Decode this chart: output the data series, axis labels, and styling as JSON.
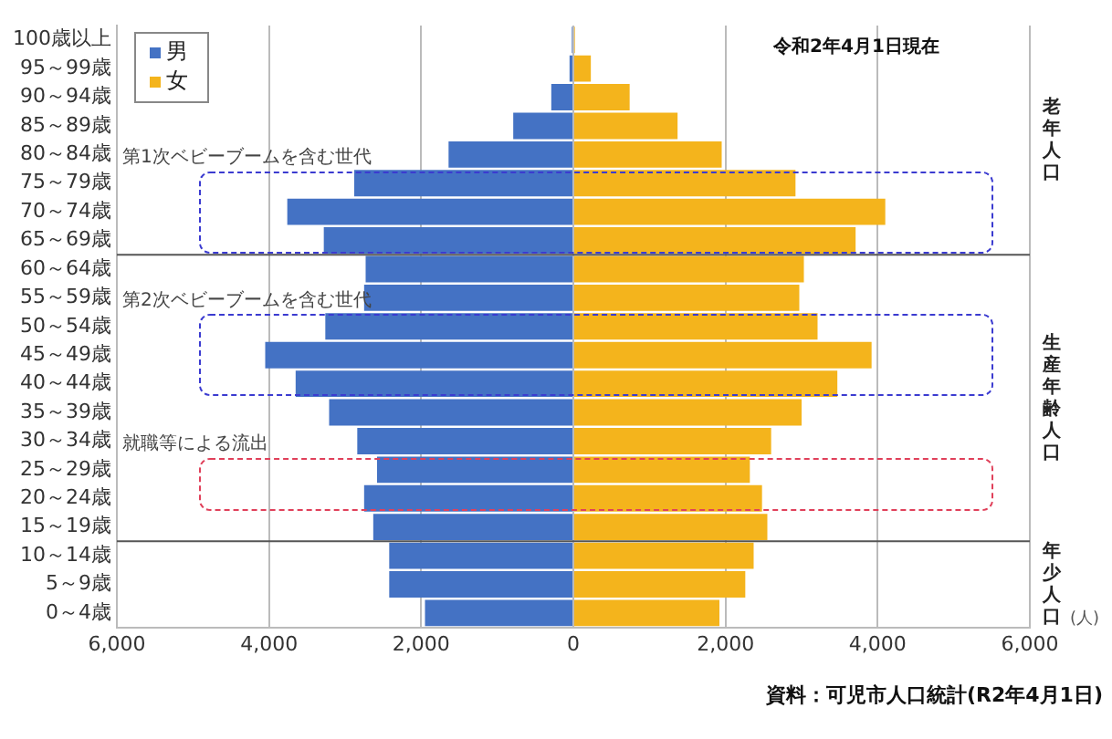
{
  "chart_data": {
    "type": "bar",
    "orientation": "horizontal",
    "stacked": true,
    "categories": [
      "100歳以上",
      "95～99歳",
      "90～94歳",
      "85～89歳",
      "80～84歳",
      "75～79歳",
      "70～74歳",
      "65～69歳",
      "60～64歳",
      "55～59歳",
      "50～54歳",
      "45～49歳",
      "40～44歳",
      "35～39歳",
      "30～34歳",
      "25～29歳",
      "20～24歳",
      "15～19歳",
      "10～14歳",
      "5～9歳",
      "0～4歳"
    ],
    "series": [
      {
        "name": "男",
        "color": "#4472c4",
        "values": [
          -20,
          -50,
          -290,
          -790,
          -1640,
          -2880,
          -3760,
          -3280,
          -2730,
          -2750,
          -3260,
          -4050,
          -3650,
          -3210,
          -2840,
          -2580,
          -2750,
          -2630,
          -2420,
          -2420,
          -1950
        ]
      },
      {
        "name": "女",
        "color": "#f4b41c",
        "values": [
          20,
          230,
          740,
          1370,
          1950,
          2920,
          4100,
          3710,
          3030,
          2970,
          3210,
          3920,
          3470,
          3000,
          2600,
          2320,
          2480,
          2550,
          2370,
          2260,
          1920
        ]
      }
    ],
    "xlim": [
      -6000,
      6000
    ],
    "xticks": [
      {
        "value": -6000,
        "label": "6,000"
      },
      {
        "value": -4000,
        "label": "4,000"
      },
      {
        "value": -2000,
        "label": "2,000"
      },
      0,
      {
        "value": 2000,
        "label": "2,000"
      },
      {
        "value": 4000,
        "label": "4,000"
      },
      {
        "value": 6000,
        "label": "6,000"
      }
    ],
    "xlabel": "(人)",
    "grid": "x",
    "legend": "top left",
    "annotations": [
      "令和2年4月1日現在",
      "第1次ベビーブームを含む世代",
      "第2次ベビーブームを含む世代",
      "就職等による流出",
      "老年人口",
      "生産年齢人口",
      "年少人口",
      "資料：可児市人口統計(R2年4月1日)"
    ]
  }
}
